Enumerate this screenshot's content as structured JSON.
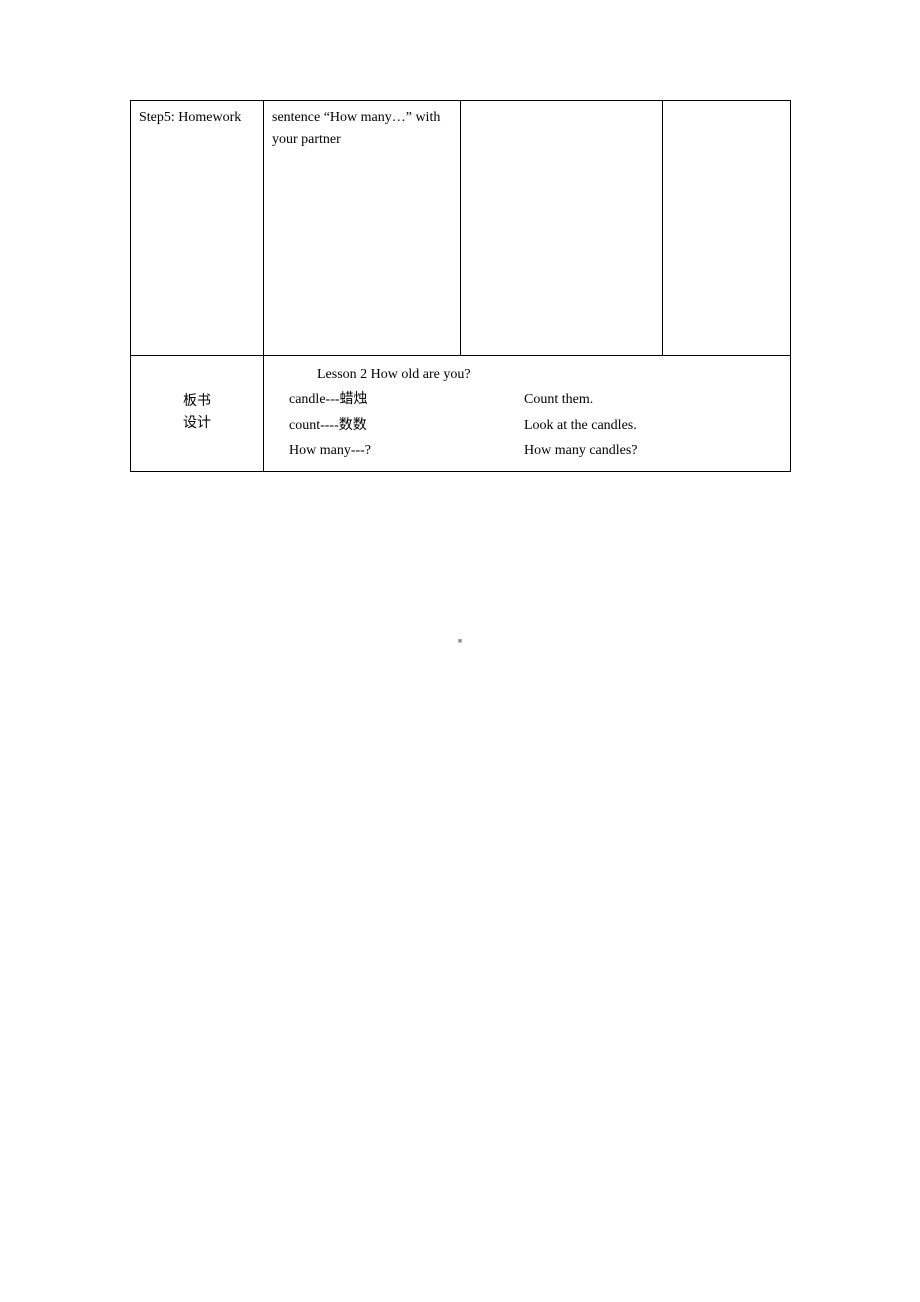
{
  "document": {
    "font_family": "SimSun",
    "background_color": "#ffffff",
    "text_color": "#000000",
    "border_color": "#000000",
    "watermark_color": "#8c8c8c",
    "base_font_size": 14
  },
  "table": {
    "row1": {
      "cell1": "Step5: Homework",
      "cell2": "sentence “How many…” with your partner",
      "cell3": "",
      "cell4": ""
    },
    "row2": {
      "label_line1": "板书",
      "label_line2": "设计",
      "title": "Lesson 2 How old are you?",
      "lines": [
        {
          "left": "candle---蜡烛",
          "right": "Count them."
        },
        {
          "left": "count----数数",
          "right": "Look at the candles."
        },
        {
          "left": "How many---?",
          "right": "How many candles?"
        }
      ]
    }
  },
  "watermark": "■"
}
